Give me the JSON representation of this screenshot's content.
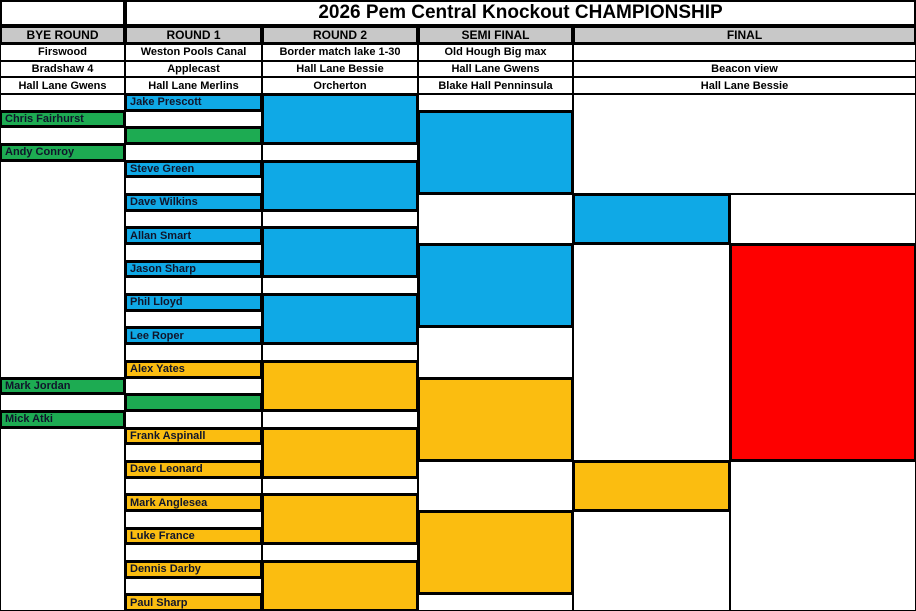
{
  "title": "2026 Pem Central Knockout CHAMPIONSHIP",
  "colors": {
    "white": "#FFFFFF",
    "blue": "#0FA9E6",
    "green": "#1DAB52",
    "orange": "#FBBD10",
    "red": "#FE0000",
    "header_bg": "#C8C8C8"
  },
  "columns": [
    {
      "label": "BYE ROUND",
      "venues": [
        "Firswood",
        "Bradshaw 4",
        "Hall Lane Gwens"
      ]
    },
    {
      "label": "ROUND 1",
      "venues": [
        "Weston Pools Canal",
        "Applecast",
        "Hall Lane Merlins"
      ]
    },
    {
      "label": "ROUND 2",
      "venues": [
        "Border match lake 1-30",
        "Hall Lane Bessie",
        "Orcherton"
      ]
    },
    {
      "label": "SEMI FINAL",
      "venues": [
        "Old Hough Big max",
        "Hall Lane Gwens",
        "Blake Hall Penninsula"
      ]
    },
    {
      "label": "FINAL",
      "venues": [
        "",
        "Beacon view",
        "Hall Lane Bessie"
      ]
    }
  ],
  "bracket": {
    "cells": [
      {
        "col": "bye",
        "row": [
          1,
          1
        ],
        "fill": "white"
      },
      {
        "col": "bye",
        "row": [
          2,
          2
        ],
        "fill": "green",
        "name": "Chris Fairhurst"
      },
      {
        "col": "bye",
        "row": [
          3,
          3
        ],
        "fill": "white"
      },
      {
        "col": "bye",
        "row": [
          4,
          4
        ],
        "fill": "green",
        "name": "Andy Conroy"
      },
      {
        "col": "bye",
        "row": [
          5,
          17
        ],
        "fill": "white"
      },
      {
        "col": "bye",
        "row": [
          18,
          18
        ],
        "fill": "green",
        "name": "Mark Jordan"
      },
      {
        "col": "bye",
        "row": [
          19,
          19
        ],
        "fill": "white"
      },
      {
        "col": "bye",
        "row": [
          20,
          20
        ],
        "fill": "green",
        "name": "Mick Atki"
      },
      {
        "col": "bye",
        "row": [
          21,
          31
        ],
        "fill": "white"
      },
      {
        "col": "r1",
        "row": [
          1,
          1
        ],
        "fill": "blue",
        "name": "Jake Prescott"
      },
      {
        "col": "r1",
        "row": [
          2,
          2
        ],
        "fill": "white"
      },
      {
        "col": "r1",
        "row": [
          3,
          3
        ],
        "fill": "green"
      },
      {
        "col": "r1",
        "row": [
          4,
          4
        ],
        "fill": "white"
      },
      {
        "col": "r1",
        "row": [
          5,
          5
        ],
        "fill": "blue",
        "name": "Steve Green"
      },
      {
        "col": "r1",
        "row": [
          6,
          6
        ],
        "fill": "white"
      },
      {
        "col": "r1",
        "row": [
          7,
          7
        ],
        "fill": "blue",
        "name": "Dave Wilkins"
      },
      {
        "col": "r1",
        "row": [
          8,
          8
        ],
        "fill": "white"
      },
      {
        "col": "r1",
        "row": [
          9,
          9
        ],
        "fill": "blue",
        "name": "Allan Smart"
      },
      {
        "col": "r1",
        "row": [
          10,
          10
        ],
        "fill": "white"
      },
      {
        "col": "r1",
        "row": [
          11,
          11
        ],
        "fill": "blue",
        "name": "Jason Sharp"
      },
      {
        "col": "r1",
        "row": [
          12,
          12
        ],
        "fill": "white"
      },
      {
        "col": "r1",
        "row": [
          13,
          13
        ],
        "fill": "blue",
        "name": "Phil Lloyd"
      },
      {
        "col": "r1",
        "row": [
          14,
          14
        ],
        "fill": "white"
      },
      {
        "col": "r1",
        "row": [
          15,
          15
        ],
        "fill": "blue",
        "name": "Lee Roper"
      },
      {
        "col": "r1",
        "row": [
          16,
          16
        ],
        "fill": "white"
      },
      {
        "col": "r1",
        "row": [
          17,
          17
        ],
        "fill": "orange",
        "name": "Alex Yates"
      },
      {
        "col": "r1",
        "row": [
          18,
          18
        ],
        "fill": "white"
      },
      {
        "col": "r1",
        "row": [
          19,
          19
        ],
        "fill": "green"
      },
      {
        "col": "r1",
        "row": [
          20,
          20
        ],
        "fill": "white"
      },
      {
        "col": "r1",
        "row": [
          21,
          21
        ],
        "fill": "orange",
        "name": "Frank Aspinall"
      },
      {
        "col": "r1",
        "row": [
          22,
          22
        ],
        "fill": "white"
      },
      {
        "col": "r1",
        "row": [
          23,
          23
        ],
        "fill": "orange",
        "name": "Dave Leonard"
      },
      {
        "col": "r1",
        "row": [
          24,
          24
        ],
        "fill": "white"
      },
      {
        "col": "r1",
        "row": [
          25,
          25
        ],
        "fill": "orange",
        "name": "Mark Anglesea"
      },
      {
        "col": "r1",
        "row": [
          26,
          26
        ],
        "fill": "white"
      },
      {
        "col": "r1",
        "row": [
          27,
          27
        ],
        "fill": "orange",
        "name": "Luke France"
      },
      {
        "col": "r1",
        "row": [
          28,
          28
        ],
        "fill": "white"
      },
      {
        "col": "r1",
        "row": [
          29,
          29
        ],
        "fill": "orange",
        "name": "Dennis Darby"
      },
      {
        "col": "r1",
        "row": [
          30,
          30
        ],
        "fill": "white"
      },
      {
        "col": "r1",
        "row": [
          31,
          31
        ],
        "fill": "orange",
        "name": "Paul Sharp"
      },
      {
        "col": "r2",
        "row": [
          1,
          3
        ],
        "fill": "blue"
      },
      {
        "col": "r2",
        "row": [
          4,
          4
        ],
        "fill": "white"
      },
      {
        "col": "r2",
        "row": [
          5,
          7
        ],
        "fill": "blue"
      },
      {
        "col": "r2",
        "row": [
          8,
          8
        ],
        "fill": "white"
      },
      {
        "col": "r2",
        "row": [
          9,
          11
        ],
        "fill": "blue"
      },
      {
        "col": "r2",
        "row": [
          12,
          12
        ],
        "fill": "white"
      },
      {
        "col": "r2",
        "row": [
          13,
          15
        ],
        "fill": "blue"
      },
      {
        "col": "r2",
        "row": [
          16,
          16
        ],
        "fill": "white"
      },
      {
        "col": "r2",
        "row": [
          17,
          19
        ],
        "fill": "orange"
      },
      {
        "col": "r2",
        "row": [
          20,
          20
        ],
        "fill": "white"
      },
      {
        "col": "r2",
        "row": [
          21,
          23
        ],
        "fill": "orange"
      },
      {
        "col": "r2",
        "row": [
          24,
          24
        ],
        "fill": "white"
      },
      {
        "col": "r2",
        "row": [
          25,
          27
        ],
        "fill": "orange"
      },
      {
        "col": "r2",
        "row": [
          28,
          28
        ],
        "fill": "white"
      },
      {
        "col": "r2",
        "row": [
          29,
          31
        ],
        "fill": "orange"
      },
      {
        "col": "sf",
        "row": [
          1,
          1
        ],
        "fill": "white"
      },
      {
        "col": "sf",
        "row": [
          2,
          6
        ],
        "fill": "blue"
      },
      {
        "col": "sf",
        "row": [
          7,
          9
        ],
        "fill": "white"
      },
      {
        "col": "sf",
        "row": [
          10,
          14
        ],
        "fill": "blue"
      },
      {
        "col": "sf",
        "row": [
          15,
          17
        ],
        "fill": "white"
      },
      {
        "col": "sf",
        "row": [
          18,
          22
        ],
        "fill": "orange"
      },
      {
        "col": "sf",
        "row": [
          23,
          25
        ],
        "fill": "white"
      },
      {
        "col": "sf",
        "row": [
          26,
          30
        ],
        "fill": "orange"
      },
      {
        "col": "sf",
        "row": [
          31,
          31
        ],
        "fill": "white"
      },
      {
        "col": "ftop",
        "row": [
          1,
          6
        ],
        "fill": "white"
      },
      {
        "col": "f1",
        "row": [
          7,
          9
        ],
        "fill": "blue"
      },
      {
        "col": "f2",
        "row": [
          7,
          9
        ],
        "fill": "white"
      },
      {
        "col": "f1",
        "row": [
          10,
          22
        ],
        "fill": "white"
      },
      {
        "col": "f2",
        "row": [
          10,
          22
        ],
        "fill": "red"
      },
      {
        "col": "f1",
        "row": [
          23,
          25
        ],
        "fill": "orange"
      },
      {
        "col": "f1",
        "row": [
          26,
          31
        ],
        "fill": "white"
      },
      {
        "col": "f2",
        "row": [
          23,
          31
        ],
        "fill": "white"
      }
    ]
  }
}
